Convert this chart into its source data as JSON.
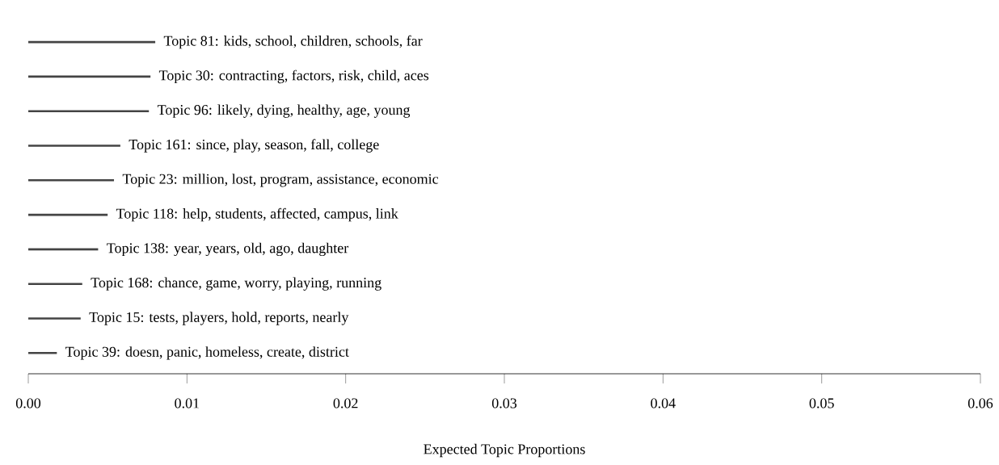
{
  "chart_data": {
    "type": "bar",
    "orientation": "horizontal",
    "xlabel": "Expected Topic Proportions",
    "categories": [
      "Topic 81: kids, school, children, schools, far",
      "Topic 30: contracting, factors, risk, child, aces",
      "Topic 96: likely, dying, healthy, age, young",
      "Topic 161: since, play, season, fall, college",
      "Topic 23: million, lost, program, assistance, economic",
      "Topic 118: help, students, affected, campus, link",
      "Topic 138: year, years, old, ago, daughter",
      "Topic 168: chance, game, worry, playing, running",
      "Topic 15: tests, players, hold, reports, nearly",
      "Topic 39: doesn, panic, homeless, create, district"
    ],
    "values": [
      0.008,
      0.0077,
      0.0076,
      0.0058,
      0.0054,
      0.005,
      0.0044,
      0.0034,
      0.0033,
      0.0018
    ],
    "color": "#444444",
    "xlim": [
      0,
      0.06
    ],
    "xticks": [
      {
        "value": 0,
        "label": "0.00"
      },
      0.01,
      0.02,
      0.03,
      0.04,
      0.05,
      0.06
    ],
    "tick_labels": "x",
    "grid": false
  }
}
